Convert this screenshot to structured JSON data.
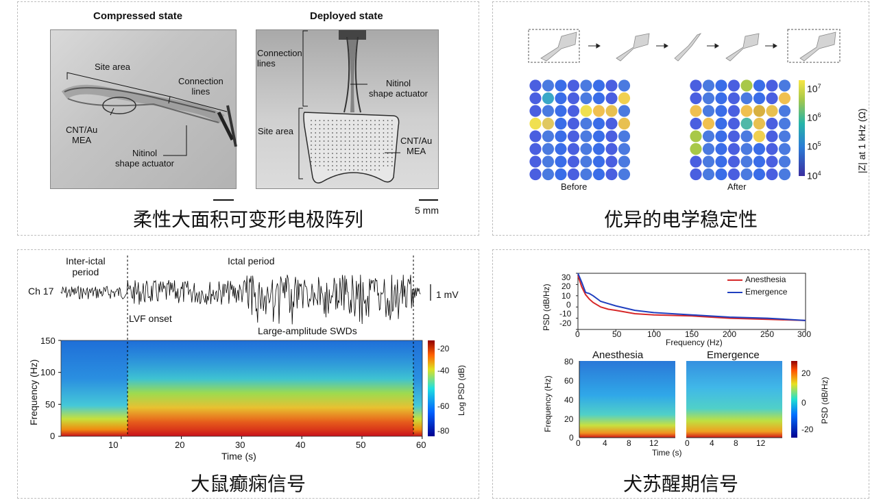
{
  "panel_a": {
    "title_left": "Compressed state",
    "title_right": "Deployed state",
    "left_labels": {
      "site_area": "Site area",
      "connection": "Connection\nlines",
      "cnt": "CNT/Au\nMEA",
      "nitinol": "Nitinol\nshape actuator"
    },
    "right_labels": {
      "connection": "Connection\nlines",
      "nitinol": "Nitinol\nshape actuator",
      "site_area": "Site area",
      "cnt": "CNT/Au\nMEA"
    },
    "scale": "5 mm",
    "caption": "柔性大面积可变形电极阵列"
  },
  "panel_b": {
    "before": "Before",
    "after": "After",
    "colorbar_label": "|Z| at 1 kHz (Ω)",
    "colorbar_ticks": [
      "7",
      "6",
      "5",
      "4"
    ],
    "colorbar_base": "10",
    "caption": "优异的电学稳定性",
    "colors": {
      "low": "#3b4cc0",
      "mid": "#3a7bd5",
      "hi": "#f0d64a"
    }
  },
  "panel_c": {
    "interictal": "Inter-ictal\nperiod",
    "ictal": "Ictal period",
    "channel": "Ch 17",
    "scale": "1 mV",
    "lvf": "LVF onset",
    "swd": "Large-amplitude SWDs",
    "ylabel": "Frequency (Hz)",
    "xlabel": "Time (s)",
    "yticks": [
      "150",
      "100",
      "50",
      "0"
    ],
    "xticks": [
      "10",
      "20",
      "30",
      "40",
      "50",
      "60"
    ],
    "cbar_label": "Log PSD (dB)",
    "cbar_ticks": [
      "-20",
      "-40",
      "-60",
      "-80"
    ],
    "caption": "大鼠癫痫信号"
  },
  "panel_d": {
    "psd_ylabel": "PSD (dB/Hz)",
    "psd_xlabel": "Frequency (Hz)",
    "psd_yticks": [
      "30",
      "20",
      "10",
      "0",
      "-10",
      "-20"
    ],
    "psd_xticks": [
      "0",
      "50",
      "100",
      "150",
      "200",
      "250",
      "300"
    ],
    "legend": [
      "Anesthesia",
      "Emergence"
    ],
    "spec_titles": [
      "Anesthesia",
      "Emergence"
    ],
    "spec_ylabel": "Frequency (Hz)",
    "spec_xlabel": "Time (s)",
    "spec_yticks": [
      "80",
      "60",
      "40",
      "20",
      "0"
    ],
    "spec_xticks": [
      "0",
      "4",
      "8",
      "12"
    ],
    "cbar_label": "PSD (dB/Hz)",
    "cbar_ticks": [
      "20",
      "0",
      "-20"
    ],
    "caption": "犬苏醒期信号"
  },
  "chart_data": [
    {
      "type": "line",
      "title": "",
      "xlabel": "Frequency (Hz)",
      "ylabel": "PSD (dB/Hz)",
      "xlim": [
        0,
        300
      ],
      "ylim": [
        -20,
        30
      ],
      "legend": "top-right",
      "x": [
        0,
        5,
        10,
        15,
        20,
        30,
        40,
        50,
        75,
        100,
        150,
        200,
        250,
        300
      ],
      "series": [
        {
          "name": "Anesthesia",
          "color": "#d62728",
          "values": [
            28,
            18,
            11,
            7,
            4,
            0,
            -2,
            -3,
            -6,
            -7,
            -8,
            -10,
            -11,
            -12
          ]
        },
        {
          "name": "Emergence",
          "color": "#1f3fbf",
          "values": [
            30,
            22,
            13,
            12,
            10,
            5,
            3,
            1,
            -3,
            -5,
            -7,
            -9,
            -10,
            -12
          ]
        }
      ]
    }
  ]
}
